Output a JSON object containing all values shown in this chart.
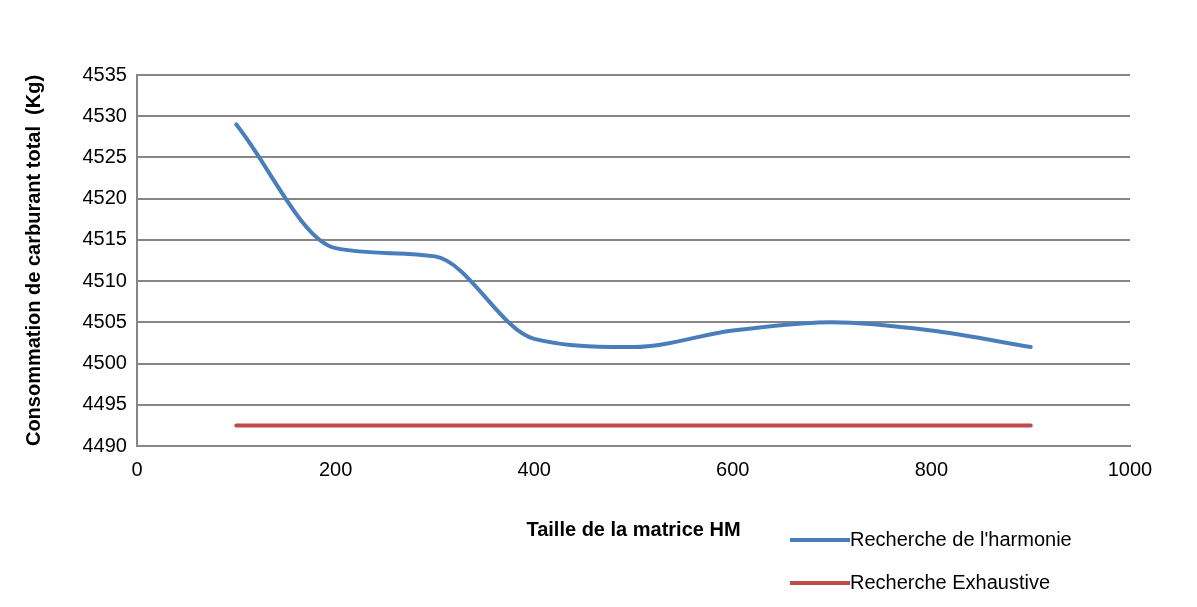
{
  "chart_data": {
    "type": "line",
    "xlabel": "Taille de la matrice HM",
    "ylabel": "Consommation de carburant total  (Kg)",
    "x": [
      100,
      200,
      300,
      400,
      500,
      600,
      700,
      800,
      900
    ],
    "series": [
      {
        "name": "Recherche de l'harmonie",
        "color": "#4a7ebb",
        "values": [
          4529,
          4514,
          4513,
          4503,
          4502,
          4504,
          4505,
          4504,
          4502
        ]
      },
      {
        "name": "Recherche Exhaustive",
        "color": "#be4b48",
        "values": [
          4492.5,
          4492.5,
          4492.5,
          4492.5,
          4492.5,
          4492.5,
          4492.5,
          4492.5,
          4492.5
        ]
      }
    ],
    "xlim": [
      0,
      1000
    ],
    "xticks": [
      0,
      200,
      400,
      600,
      800,
      1000
    ],
    "ylim": [
      4490,
      4535
    ],
    "yticks": [
      4490,
      4495,
      4500,
      4505,
      4510,
      4515,
      4520,
      4525,
      4530,
      4535
    ],
    "grid": "y",
    "legend": "bottom right",
    "marker": "none",
    "line_style": "solid"
  }
}
